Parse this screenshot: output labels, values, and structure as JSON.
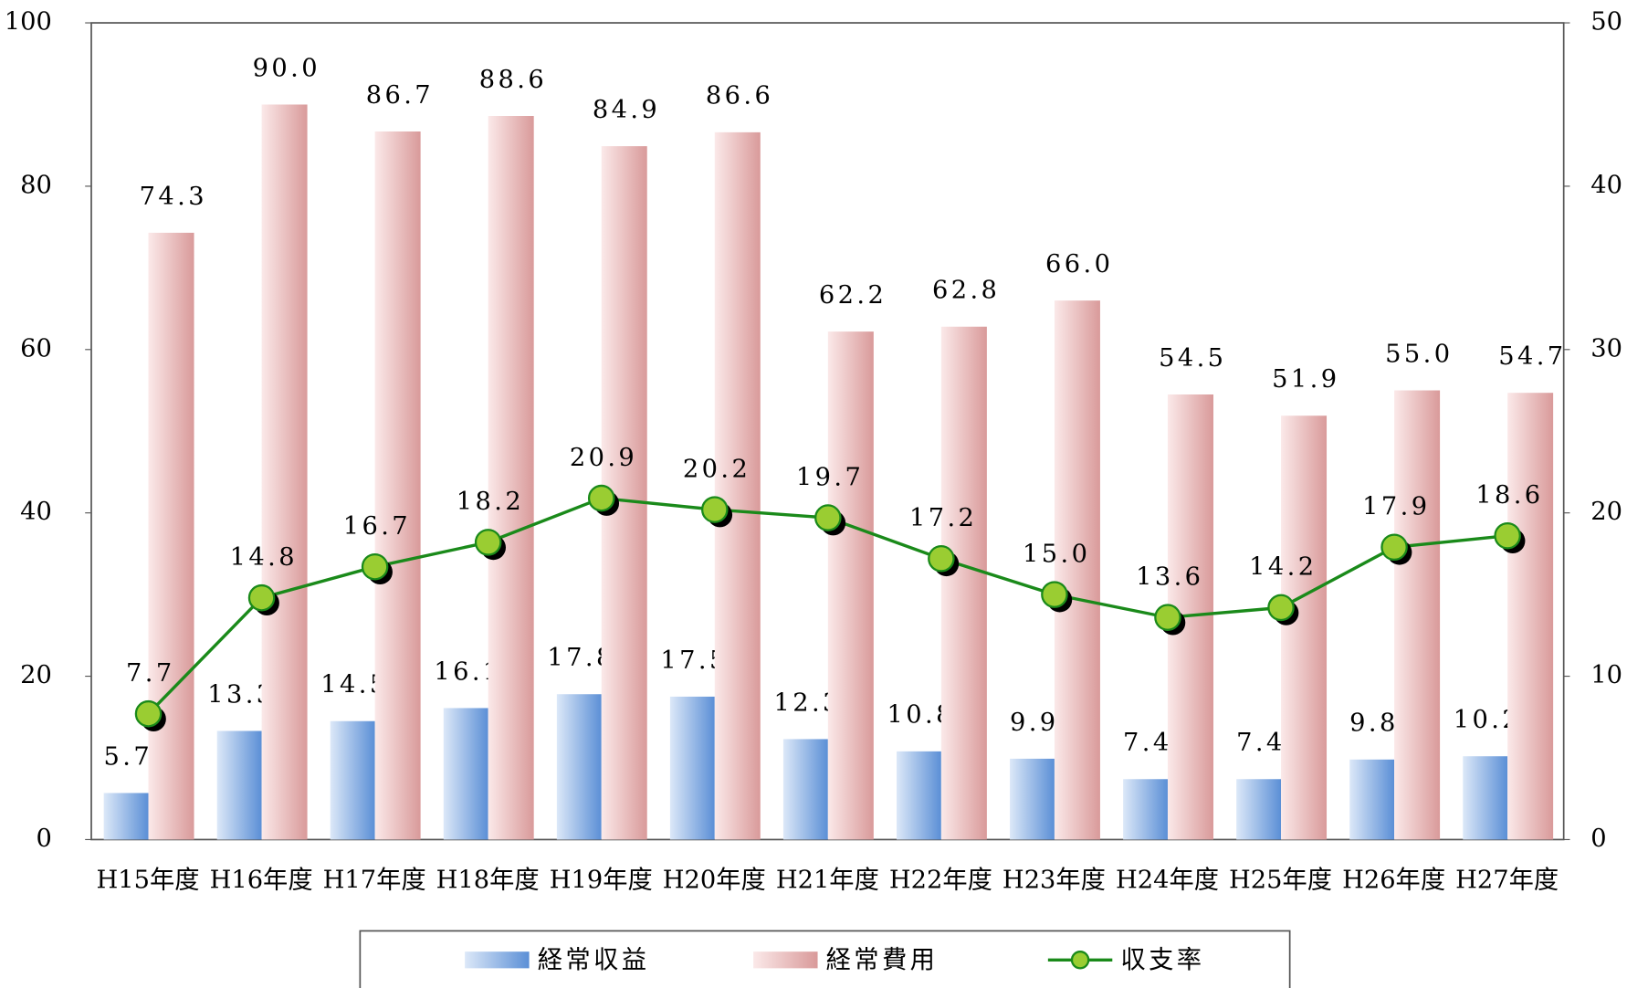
{
  "chart_data": {
    "type": "bar",
    "categories": [
      "H15年度",
      "H16年度",
      "H17年度",
      "H18年度",
      "H19年度",
      "H20年度",
      "H21年度",
      "H22年度",
      "H23年度",
      "H24年度",
      "H25年度",
      "H26年度",
      "H27年度"
    ],
    "series": [
      {
        "name": "経常収益",
        "type": "bar",
        "color": "#5b8fd6",
        "values": [
          5.7,
          13.3,
          14.5,
          16.1,
          17.8,
          17.5,
          12.3,
          10.8,
          9.9,
          7.4,
          7.4,
          9.8,
          10.2
        ],
        "value_labels": [
          "5.7",
          "13.3",
          "14.5",
          "16.1",
          "17.8",
          "17.5",
          "12.3",
          "10.8",
          "9.9",
          "7.4",
          "7.4",
          "9.8",
          "10.2"
        ]
      },
      {
        "name": "経常費用",
        "type": "bar",
        "color": "#d99a9a",
        "values": [
          74.3,
          90.0,
          86.7,
          88.6,
          84.9,
          86.6,
          62.2,
          62.8,
          66.0,
          54.5,
          51.9,
          55.0,
          54.7
        ],
        "value_labels": [
          "74.3",
          "90.0",
          "86.7",
          "88.6",
          "84.9",
          "86.6",
          "62.2",
          "62.8",
          "66.0",
          "54.5",
          "51.9",
          "55.0",
          "54.7"
        ]
      },
      {
        "name": "収支率",
        "type": "line",
        "axis": "y2",
        "color": "#1a8a1a",
        "values": [
          7.7,
          14.8,
          16.7,
          18.2,
          20.9,
          20.2,
          19.7,
          17.2,
          15.0,
          13.6,
          14.2,
          17.9,
          18.6
        ],
        "value_labels": [
          "7.7",
          "14.8",
          "16.7",
          "18.2",
          "20.9",
          "20.2",
          "19.7",
          "17.2",
          "15.0",
          "13.6",
          "14.2",
          "17.9",
          "18.6"
        ]
      }
    ],
    "ylim": [
      0,
      100
    ],
    "yticks": [
      0,
      20,
      40,
      60,
      80,
      100
    ],
    "y2lim": [
      0,
      50
    ],
    "y2ticks": [
      0,
      10,
      20,
      30,
      40,
      50
    ],
    "legend": "bottom",
    "grid": false
  }
}
